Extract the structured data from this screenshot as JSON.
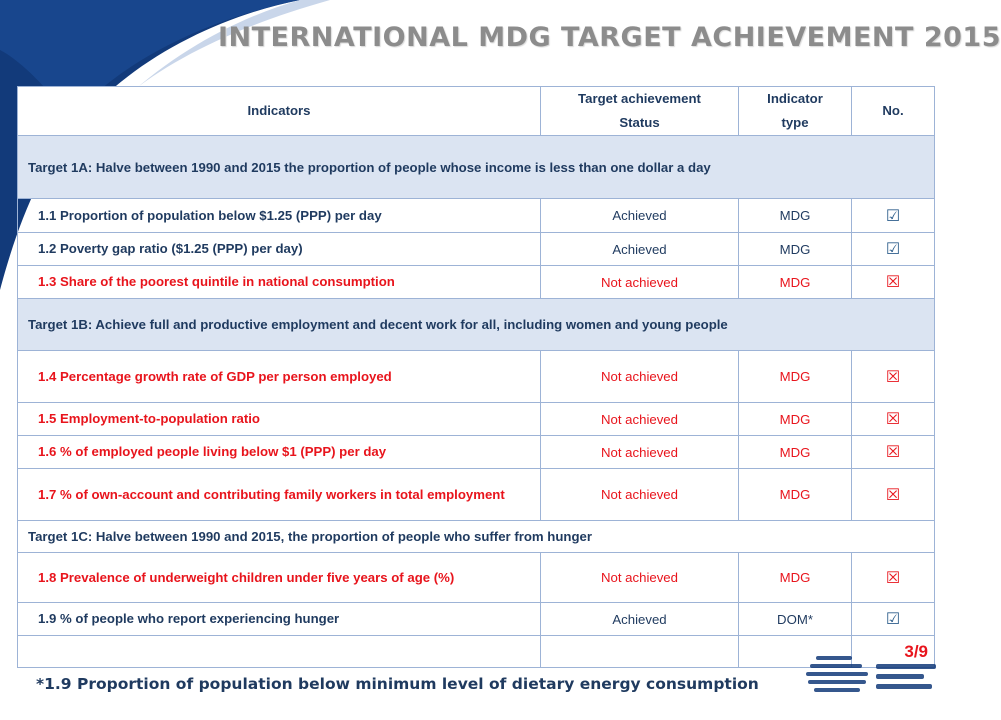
{
  "title": "INTERNATIONAL MDG TARGET ACHIEVEMENT 2015",
  "colors": {
    "navy": "#1f3a5f",
    "red": "#e8141c",
    "target_row_bg": "#dbe4f2",
    "swoosh_blue": "#123a7a"
  },
  "table": {
    "headers": {
      "indicators": "Indicators",
      "status_line1": "Target achievement",
      "status_line2": "Status",
      "type_line1": "Indicator",
      "type_line2": "type",
      "no": "No."
    },
    "targets": [
      {
        "text": "Target 1A: Halve between 1990 and 2015 the proportion of people whose income is less than one dollar a day"
      },
      {
        "text": "Target 1B: Achieve full and productive employment and decent work for all, including women and young people"
      },
      {
        "text": "Target 1C: Halve between 1990 and 2015, the proportion of people who suffer from hunger"
      }
    ],
    "rows": [
      {
        "indicator": "1.1 Proportion of population below $1.25 (PPP) per day",
        "status": "Achieved",
        "type": "MDG",
        "mark": "☑"
      },
      {
        "indicator": "1.2 Poverty gap ratio ($1.25 (PPP) per day)",
        "status": "Achieved",
        "type": "MDG",
        "mark": "☑"
      },
      {
        "indicator": "1.3 Share of the poorest quintile in national consumption",
        "status": "Not achieved",
        "type": "MDG",
        "mark": "☒"
      },
      {
        "indicator": "1.4 Percentage growth rate of GDP per person employed",
        "status": "Not achieved",
        "type": "MDG",
        "mark": "☒"
      },
      {
        "indicator": "1.5 Employment-to-population ratio",
        "status": "Not achieved",
        "type": "MDG",
        "mark": "☒"
      },
      {
        "indicator": "1.6 % of employed people living below $1 (PPP) per day",
        "status": "Not achieved",
        "type": "MDG",
        "mark": "☒"
      },
      {
        "indicator": "1.7 % of own-account and contributing family workers in total employment",
        "status": "Not achieved",
        "type": "MDG",
        "mark": "☒"
      },
      {
        "indicator": "1.8 Prevalence of underweight children under five years of age (%)",
        "status": "Not achieved",
        "type": "MDG",
        "mark": "☒"
      },
      {
        "indicator": "1.9 % of people who report experiencing hunger",
        "status": "Achieved",
        "type": "DOM*",
        "mark": "☑"
      }
    ],
    "page": "3/9"
  },
  "footnote": "*1.9 Proportion of population below minimum level of dietary energy consumption"
}
